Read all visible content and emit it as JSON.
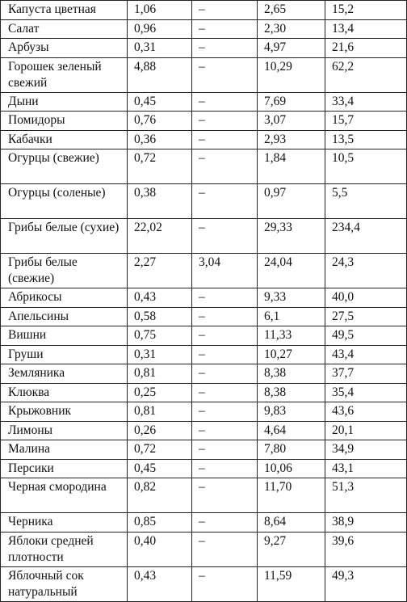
{
  "rows": [
    {
      "name": "Капуста цветная",
      "c1": "1,06",
      "c2": "–",
      "c3": "2,65",
      "c4": "15,2"
    },
    {
      "name": "Салат",
      "c1": "0,96",
      "c2": "–",
      "c3": "2,30",
      "c4": "13,4"
    },
    {
      "name": "Арбузы",
      "c1": "0,31",
      "c2": "–",
      "c3": "4,97",
      "c4": "21,6"
    },
    {
      "name": "Горошек зеленый свежий",
      "c1": "4,88",
      "c2": "–",
      "c3": "10,29",
      "c4": "62,2"
    },
    {
      "name": "Дыни",
      "c1": "0,45",
      "c2": "–",
      "c3": "7,69",
      "c4": "33,4"
    },
    {
      "name": "Помидоры",
      "c1": "0,76",
      "c2": "–",
      "c3": "3,07",
      "c4": "15,7"
    },
    {
      "name": "Кабачки",
      "c1": "0,36",
      "c2": "–",
      "c3": "2,93",
      "c4": "13,5"
    },
    {
      "name": "Огурцы (свежие)",
      "c1": "0,72",
      "c2": "–",
      "c3": "1,84",
      "c4": "10,5"
    },
    {
      "name": "Огурцы (соленые)",
      "c1": "0,38",
      "c2": "–",
      "c3": "0,97",
      "c4": "5,5"
    },
    {
      "name": "Грибы белые (сухие)",
      "c1": "22,02",
      "c2": "–",
      "c3": "29,33",
      "c4": "234,4"
    },
    {
      "name": "Грибы белые (свежие)",
      "c1": "2,27",
      "c2": "3,04",
      "c3": "24,04",
      "c4": "24,3"
    },
    {
      "name": "Абрикосы",
      "c1": "0,43",
      "c2": "–",
      "c3": "9,33",
      "c4": "40,0"
    },
    {
      "name": "Апельсины",
      "c1": "0,58",
      "c2": "–",
      "c3": "6,1",
      "c4": "27,5"
    },
    {
      "name": "Вишни",
      "c1": "0,75",
      "c2": "–",
      "c3": "11,33",
      "c4": "49,5"
    },
    {
      "name": "Груши",
      "c1": "0,31",
      "c2": "–",
      "c3": "10,27",
      "c4": "43,4"
    },
    {
      "name": "Земляника",
      "c1": "0,81",
      "c2": "–",
      "c3": "8,38",
      "c4": "37,7"
    },
    {
      "name": "Клюква",
      "c1": "0,25",
      "c2": "–",
      "c3": "8,38",
      "c4": "35,4"
    },
    {
      "name": "Крыжовник",
      "c1": "0,81",
      "c2": "–",
      "c3": "9,83",
      "c4": "43,6"
    },
    {
      "name": "Лимоны",
      "c1": "0,26",
      "c2": "–",
      "c3": "4,64",
      "c4": "20,1"
    },
    {
      "name": "Малина",
      "c1": "0,72",
      "c2": "–",
      "c3": "7,80",
      "c4": "34,9"
    },
    {
      "name": "Персики",
      "c1": "0,45",
      "c2": "–",
      "c3": "10,06",
      "c4": "43,1"
    },
    {
      "name": "Черная смородина",
      "c1": "0,82",
      "c2": "–",
      "c3": "11,70",
      "c4": "51,3"
    },
    {
      "name": "Черника",
      "c1": "0,85",
      "c2": "–",
      "c3": "8,64",
      "c4": "38,9"
    },
    {
      "name": "Яблоки средней плотности",
      "c1": "0,40",
      "c2": "–",
      "c3": "9,27",
      "c4": "39,6"
    },
    {
      "name": "Яблочный сок натуральный",
      "c1": "0,43",
      "c2": "–",
      "c3": "11,59",
      "c4": "49,3"
    }
  ]
}
